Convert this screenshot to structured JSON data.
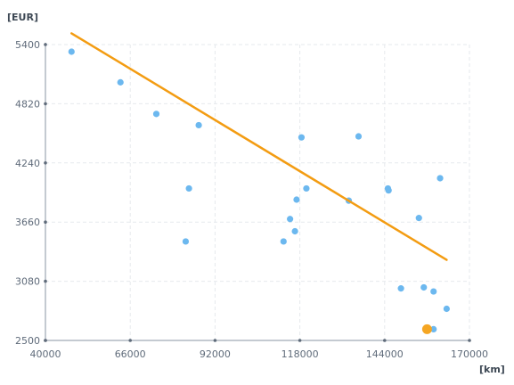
{
  "chart_data": {
    "type": "scatter",
    "xlabel": "[km]",
    "ylabel": "[EUR]",
    "xlim": [
      40000,
      170000
    ],
    "ylim": [
      2500,
      5400
    ],
    "x_ticks": [
      "40000",
      "66000",
      "92000",
      "118000",
      "144000",
      "170000"
    ],
    "y_ticks": [
      "2500",
      "3080",
      "3660",
      "4240",
      "4820",
      "5400"
    ],
    "grid": true,
    "colors": {
      "points": "#6cb8ef",
      "highlight": "#f5a623",
      "trend": "#f39c12",
      "axis": "#8a96a3",
      "grid": "#e6e9ed"
    },
    "points": [
      {
        "x": 48000,
        "y": 5330
      },
      {
        "x": 63000,
        "y": 5030
      },
      {
        "x": 74000,
        "y": 4720
      },
      {
        "x": 87000,
        "y": 4610
      },
      {
        "x": 84000,
        "y": 3990
      },
      {
        "x": 83000,
        "y": 3470
      },
      {
        "x": 113000,
        "y": 3470
      },
      {
        "x": 115000,
        "y": 3690
      },
      {
        "x": 116500,
        "y": 3570
      },
      {
        "x": 117000,
        "y": 3880
      },
      {
        "x": 118500,
        "y": 4490
      },
      {
        "x": 120000,
        "y": 3990
      },
      {
        "x": 133000,
        "y": 3870
      },
      {
        "x": 136000,
        "y": 4500
      },
      {
        "x": 145000,
        "y": 3990
      },
      {
        "x": 145200,
        "y": 3970
      },
      {
        "x": 154500,
        "y": 3700
      },
      {
        "x": 161000,
        "y": 4090
      },
      {
        "x": 149000,
        "y": 3010
      },
      {
        "x": 156000,
        "y": 3020
      },
      {
        "x": 159000,
        "y": 2980
      },
      {
        "x": 163000,
        "y": 2810
      },
      {
        "x": 159000,
        "y": 2610
      }
    ],
    "highlight": {
      "x": 157000,
      "y": 2610
    },
    "trendline": {
      "x": [
        48000,
        163000
      ],
      "y": [
        5510,
        3290
      ]
    }
  }
}
